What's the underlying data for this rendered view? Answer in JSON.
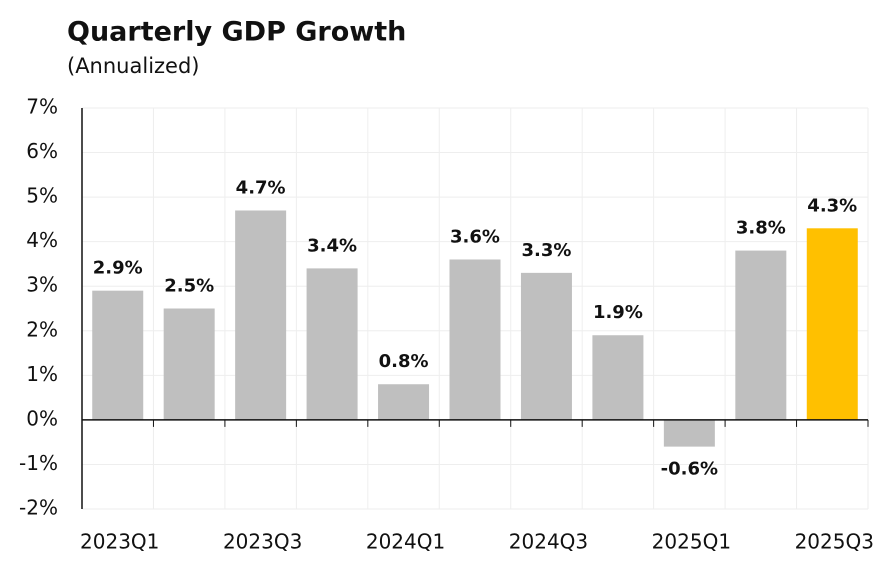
{
  "chart_data": {
    "type": "bar",
    "title": "Quarterly GDP Growth",
    "subtitle": "(Annualized)",
    "categories": [
      "2023Q1",
      null,
      "2023Q3",
      null,
      "2024Q1",
      null,
      "2024Q3",
      null,
      "2025Q1",
      null,
      "2025Q3"
    ],
    "values": [
      2.9,
      2.5,
      4.7,
      3.4,
      0.8,
      3.6,
      3.3,
      1.9,
      -0.6,
      3.8,
      4.3
    ],
    "value_labels": [
      "2.9%",
      "2.5%",
      "4.7%",
      "3.4%",
      "0.8%",
      "3.6%",
      "3.3%",
      "1.9%",
      "-0.6%",
      "3.8%",
      "4.3%"
    ],
    "colors": [
      "#bfbfbf",
      "#bfbfbf",
      "#bfbfbf",
      "#bfbfbf",
      "#bfbfbf",
      "#bfbfbf",
      "#bfbfbf",
      "#bfbfbf",
      "#bfbfbf",
      "#bfbfbf",
      "#ffc000"
    ],
    "ylim": [
      -2,
      7
    ],
    "yticks": [
      {
        "value": -2,
        "label": "-2%"
      },
      {
        "value": -1,
        "label": "-1%"
      },
      {
        "value": 0,
        "label": "0%"
      },
      {
        "value": 1,
        "label": "1%"
      },
      {
        "value": 2,
        "label": "2%"
      },
      {
        "value": 3,
        "label": "3%"
      },
      {
        "value": 4,
        "label": "4%"
      },
      {
        "value": 5,
        "label": "5%"
      },
      {
        "value": 6,
        "label": "6%"
      },
      {
        "value": 7,
        "label": "7%"
      }
    ],
    "grid": true
  }
}
